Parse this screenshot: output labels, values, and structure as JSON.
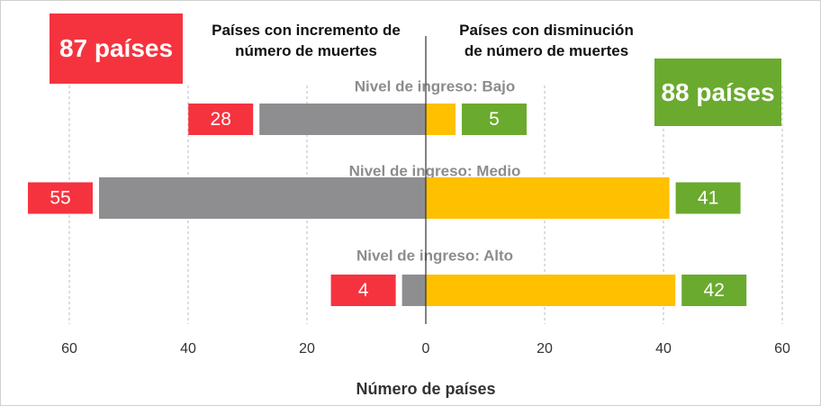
{
  "chart_data": {
    "type": "diverging-bar",
    "categories": [
      "Nivel de ingreso: Bajo",
      "Nivel de ingreso: Medio",
      "Nivel de ingreso: Alto"
    ],
    "series": [
      {
        "name": "Países con incremento de número de muertes",
        "color": "#8e8e90",
        "label_color": "#f5333f",
        "values": [
          -28,
          -55,
          -4
        ],
        "value_labels": [
          "28",
          "55",
          "4"
        ]
      },
      {
        "name": "Países con disminución de número de muertes",
        "color": "#ffc000",
        "label_color": "#6aaa2f",
        "values": [
          5,
          41,
          42
        ]
      }
    ],
    "annotations": [
      {
        "text": "87 países",
        "color": "#f5333f"
      },
      {
        "text": "88 países",
        "color": "#6aaa2f"
      }
    ],
    "xlabel": "Número de países",
    "xlim": [
      -60,
      60
    ],
    "xticks": [
      {
        "value": -60,
        "label": "60"
      },
      {
        "value": -40,
        "label": "40"
      },
      {
        "value": -20,
        "label": "20"
      },
      0,
      20,
      40,
      60
    ],
    "grid": true
  }
}
